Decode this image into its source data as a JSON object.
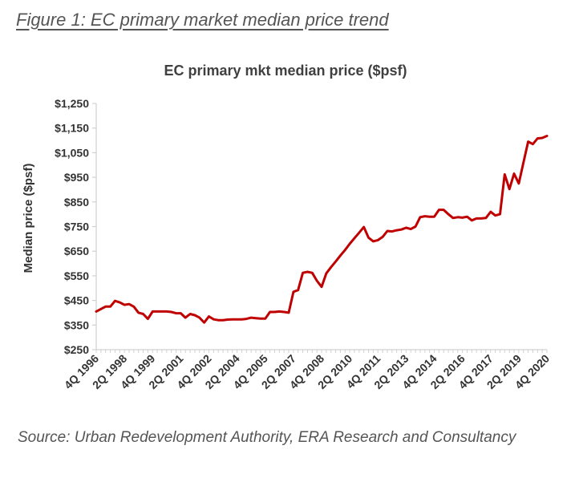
{
  "figure": {
    "caption": "Figure 1: EC primary market median price trend",
    "source": "Source: Urban Redevelopment Authority, ERA Research and Consultancy",
    "cutoff_text": ""
  },
  "chart_data": {
    "type": "line",
    "title": "EC primary mkt median price ($psf)",
    "xlabel": "",
    "ylabel": "Median price ($psf)",
    "ylim": [
      250,
      1250
    ],
    "y_ticks": [
      "$1,250",
      "$1,150",
      "$1,050",
      "$950",
      "$850",
      "$750",
      "$650",
      "$550",
      "$450",
      "$350",
      "$250"
    ],
    "y_tick_values": [
      1250,
      1150,
      1050,
      950,
      850,
      750,
      650,
      550,
      450,
      350,
      250
    ],
    "x_tick_labels": [
      "4Q 1996",
      "2Q 1998",
      "4Q 1999",
      "2Q 2001",
      "4Q 2002",
      "2Q 2004",
      "4Q 2005",
      "2Q 2007",
      "4Q 2008",
      "2Q 2010",
      "4Q 2011",
      "2Q 2013",
      "4Q 2014",
      "2Q 2016",
      "4Q 2017",
      "2Q 2019",
      "4Q 2020"
    ],
    "x_tick_quarters": [
      "4Q 1996",
      "2Q 1998",
      "4Q 1999",
      "2Q 2001",
      "4Q 2002",
      "2Q 2004",
      "4Q 2005",
      "2Q 2007",
      "4Q 2008",
      "2Q 2010",
      "4Q 2011",
      "2Q 2013",
      "4Q 2014",
      "2Q 2016",
      "4Q 2017",
      "2Q 2019",
      "4Q 2020"
    ],
    "grid": false,
    "legend": "none",
    "line_color": "#c00000",
    "series": [
      {
        "name": "",
        "x": [
          "4Q 1996",
          "1Q 1997",
          "2Q 1997",
          "3Q 1997",
          "4Q 1997",
          "1Q 1998",
          "2Q 1998",
          "3Q 1998",
          "4Q 1998",
          "1Q 1999",
          "2Q 1999",
          "3Q 1999",
          "4Q 1999",
          "1Q 2000",
          "2Q 2000",
          "3Q 2000",
          "4Q 2000",
          "1Q 2001",
          "2Q 2001",
          "3Q 2001",
          "4Q 2001",
          "1Q 2002",
          "2Q 2002",
          "3Q 2002",
          "4Q 2002",
          "1Q 2003",
          "2Q 2003",
          "3Q 2003",
          "4Q 2003",
          "1Q 2004",
          "2Q 2004",
          "3Q 2004",
          "4Q 2004",
          "1Q 2005",
          "2Q 2005",
          "3Q 2005",
          "4Q 2005",
          "1Q 2006",
          "2Q 2006",
          "3Q 2006",
          "4Q 2006",
          "1Q 2007",
          "2Q 2007",
          "3Q 2007",
          "4Q 2007",
          "1Q 2008",
          "2Q 2008",
          "3Q 2008",
          "4Q 2008",
          "1Q 2009",
          "2Q 2009",
          "3Q 2009",
          "4Q 2009",
          "1Q 2010",
          "2Q 2010",
          "3Q 2010",
          "4Q 2010",
          "1Q 2011",
          "2Q 2011",
          "3Q 2011",
          "4Q 2011",
          "1Q 2012",
          "2Q 2012",
          "3Q 2012",
          "4Q 2012",
          "1Q 2013",
          "2Q 2013",
          "3Q 2013",
          "4Q 2013",
          "1Q 2014",
          "2Q 2014",
          "3Q 2014",
          "4Q 2014",
          "1Q 2015",
          "2Q 2015",
          "3Q 2015",
          "4Q 2015",
          "1Q 2016",
          "2Q 2016",
          "3Q 2016",
          "4Q 2016",
          "1Q 2017",
          "2Q 2017",
          "3Q 2017",
          "4Q 2017",
          "1Q 2018",
          "2Q 2018",
          "3Q 2018",
          "4Q 2018",
          "1Q 2019",
          "2Q 2019",
          "3Q 2019",
          "4Q 2019",
          "1Q 2020",
          "2Q 2020",
          "3Q 2020",
          "4Q 2020"
        ],
        "values": [
          405,
          415,
          425,
          425,
          448,
          442,
          432,
          435,
          425,
          400,
          395,
          375,
          405,
          405,
          405,
          405,
          403,
          398,
          398,
          380,
          395,
          390,
          380,
          360,
          385,
          373,
          370,
          370,
          372,
          373,
          373,
          373,
          375,
          380,
          378,
          376,
          376,
          403,
          403,
          405,
          403,
          400,
          485,
          492,
          562,
          566,
          562,
          530,
          505,
          560,
          585,
          608,
          632,
          655,
          680,
          703,
          725,
          748,
          705,
          690,
          695,
          708,
          732,
          730,
          735,
          738,
          745,
          740,
          750,
          788,
          792,
          790,
          790,
          818,
          818,
          800,
          785,
          788,
          786,
          790,
          775,
          783,
          783,
          785,
          810,
          795,
          800,
          962,
          902,
          965,
          925,
          1010,
          1095,
          1085,
          1108,
          1110,
          1118
        ]
      }
    ]
  }
}
